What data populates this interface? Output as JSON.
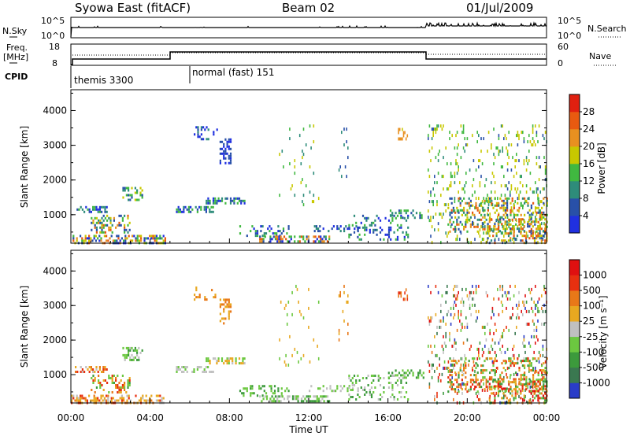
{
  "header": {
    "title_left": "Syowa East (fitACF)",
    "title_center": "Beam 02",
    "title_right": "01/Jul/2009"
  },
  "panels": {
    "nsky": {
      "left_label": "N.Sky",
      "right_label": "N.Search",
      "left_ticks": [
        "10^5",
        "10^0"
      ],
      "right_ticks": [
        "10^5",
        "10^0"
      ]
    },
    "freq": {
      "left_label_1": "Freq.",
      "left_label_2": "[MHz]",
      "right_label": "Nave",
      "left_ticks": [
        "18",
        "8"
      ],
      "right_ticks": [
        "60",
        "0"
      ]
    },
    "cpid": {
      "label": "CPID",
      "segments": [
        "themis 3300",
        "normal (fast) 151"
      ]
    }
  },
  "chart_data": [
    {
      "type": "heatmap",
      "name": "power",
      "ylabel": "Slant Range [km]",
      "ylim": [
        180,
        4600
      ],
      "y_ticks": [
        "1000",
        "2000",
        "3000",
        "4000"
      ],
      "colorbar_label": "Power [dB]",
      "colorbar_ticks": [
        "4",
        "8",
        "12",
        "16",
        "20",
        "24",
        "28"
      ],
      "colors": [
        "#2030e0",
        "#2850a8",
        "#2e8c7a",
        "#40b840",
        "#c8c800",
        "#e89020",
        "#e85a10",
        "#e02010"
      ]
    },
    {
      "type": "heatmap",
      "name": "velocity",
      "ylabel": "Slant Range [km]",
      "ylim": [
        180,
        4600
      ],
      "y_ticks": [
        "1000",
        "2000",
        "3000",
        "4000"
      ],
      "colorbar_label": "Velocity [m s⁻¹]",
      "colorbar_ticks": [
        "1000",
        "500",
        "100",
        "25",
        "-25",
        "-100",
        "-500",
        "-1000"
      ],
      "colors": [
        "#2a3cc8",
        "#3a7850",
        "#3c9a3c",
        "#6cc840",
        "#c0c0c0",
        "#e8a820",
        "#e87818",
        "#e83010",
        "#e01010"
      ],
      "xlabel": "Time UT",
      "x_ticks": [
        "00:00",
        "04:00",
        "08:00",
        "12:00",
        "16:00",
        "20:00",
        "00:00"
      ]
    }
  ]
}
